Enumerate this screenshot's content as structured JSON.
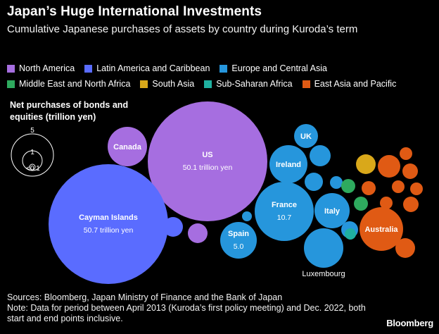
{
  "header": {
    "title": "Japan’s Huge International Investments",
    "subtitle": "Cumulative Japanese purchases of assets by country during Kuroda’s term"
  },
  "legend": [
    {
      "label": "North America",
      "color": "#a66ee0"
    },
    {
      "label": "Latin America and Caribbean",
      "color": "#5a6cff"
    },
    {
      "label": "Europe and Central Asia",
      "color": "#2696dc"
    },
    {
      "label": "Middle East and North Africa",
      "color": "#2eaa5e"
    },
    {
      "label": "South Asia",
      "color": "#d9a81a"
    },
    {
      "label": "Sub-Saharan Africa",
      "color": "#1fb0a0"
    },
    {
      "label": "East Asia and Pacific",
      "color": "#e05a14"
    }
  ],
  "size_key": {
    "title": "Net purchases of bonds and equities (trillion yen)",
    "labels": [
      "5",
      "1",
      "<0.1"
    ]
  },
  "chart_data": {
    "type": "bubble",
    "measure": "Net purchases of bonds and equities (trillion yen)",
    "bubbles": [
      {
        "label": "US",
        "value_label": "50.1 trillion yen",
        "value": 50.1,
        "region": "North America"
      },
      {
        "label": "Canada",
        "value": 6.5,
        "region": "North America"
      },
      {
        "label": "Cayman Islands",
        "value_label": "50.7 trillion yen",
        "value": 50.7,
        "region": "Latin America and Caribbean"
      },
      {
        "label": "France",
        "value_label": "10.7",
        "value": 10.7,
        "region": "Europe and Central Asia"
      },
      {
        "label": "Spain",
        "value_label": "5.0",
        "value": 5.0,
        "region": "Europe and Central Asia"
      },
      {
        "label": "Ireland",
        "value": 5.2,
        "region": "Europe and Central Asia"
      },
      {
        "label": "Italy",
        "value": 4.3,
        "region": "Europe and Central Asia"
      },
      {
        "label": "UK",
        "value": 1.9,
        "region": "Europe and Central Asia"
      },
      {
        "label": "Luxembourg",
        "value": 5.6,
        "region": "Europe and Central Asia"
      },
      {
        "label": "Australia",
        "value": 7.4,
        "region": "East Asia and Pacific"
      }
    ]
  },
  "footer": {
    "sources": "Sources: Bloomberg, Japan Ministry of Finance and the Bank of Japan",
    "note": "Note: Data for period between April 2013 (Kuroda’s first policy meeting) and Dec. 2022, both start and end points inclusive."
  },
  "brand": "Bloomberg"
}
